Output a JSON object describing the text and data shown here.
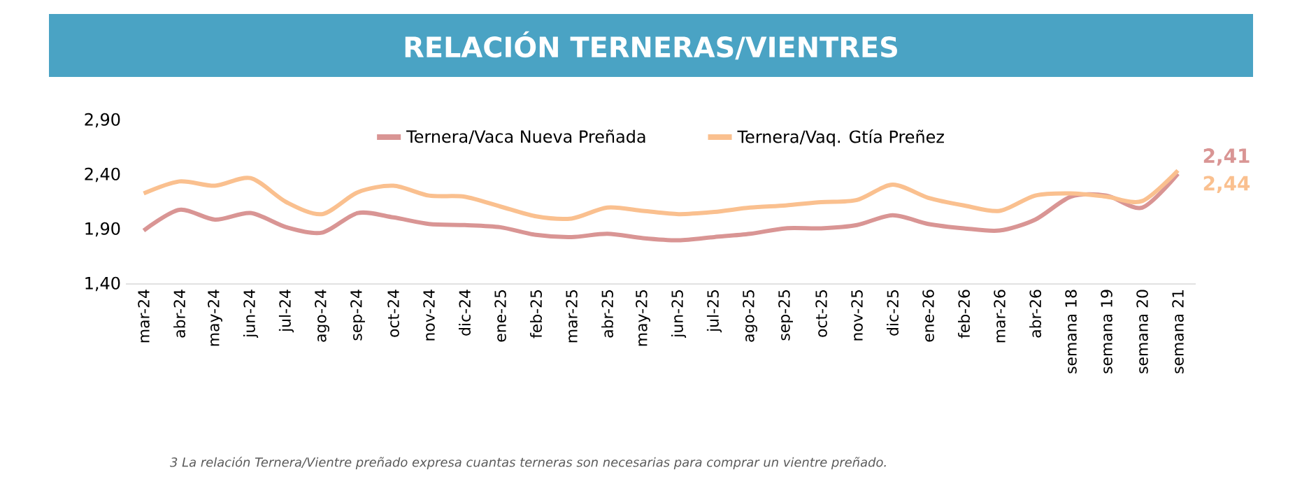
{
  "chart_data": {
    "type": "line",
    "title": "RELACIÓN TERNERAS/VIENTRES",
    "categories": [
      "mar-24",
      "abr-24",
      "may-24",
      "jun-24",
      "jul-24",
      "ago-24",
      "sep-24",
      "oct-24",
      "nov-24",
      "dic-24",
      "ene-25",
      "feb-25",
      "mar-25",
      "abr-25",
      "may-25",
      "jun-25",
      "jul-25",
      "ago-25",
      "sep-25",
      "oct-25",
      "nov-25",
      "dic-25",
      "ene-26",
      "feb-26",
      "mar-26",
      "abr-26",
      "semana 18",
      "semana 19",
      "semana 20",
      "semana 21"
    ],
    "series": [
      {
        "name": "Ternera/Vaca Nueva Preñada",
        "color": "#d99594",
        "values": [
          1.89,
          2.08,
          1.99,
          2.05,
          1.92,
          1.87,
          2.05,
          2.01,
          1.95,
          1.94,
          1.92,
          1.85,
          1.83,
          1.86,
          1.82,
          1.8,
          1.83,
          1.86,
          1.91,
          1.91,
          1.94,
          2.03,
          1.95,
          1.91,
          1.89,
          1.99,
          2.2,
          2.21,
          2.1,
          2.41
        ],
        "value_labels": [
          null,
          null,
          null,
          null,
          null,
          null,
          null,
          null,
          null,
          null,
          null,
          null,
          null,
          null,
          null,
          null,
          null,
          null,
          null,
          null,
          null,
          null,
          null,
          null,
          null,
          null,
          null,
          null,
          null,
          "2,41"
        ]
      },
      {
        "name": "Ternera/Vaq. Gtía Preñez",
        "color": "#fac08f",
        "values": [
          2.23,
          2.34,
          2.3,
          2.37,
          2.15,
          2.04,
          2.24,
          2.3,
          2.21,
          2.2,
          2.11,
          2.02,
          2.0,
          2.1,
          2.07,
          2.04,
          2.06,
          2.1,
          2.12,
          2.15,
          2.17,
          2.31,
          2.19,
          2.12,
          2.07,
          2.21,
          2.23,
          2.2,
          2.16,
          2.44
        ],
        "value_labels": [
          null,
          null,
          null,
          null,
          null,
          null,
          null,
          null,
          null,
          null,
          null,
          null,
          null,
          null,
          null,
          null,
          null,
          null,
          null,
          null,
          null,
          null,
          null,
          null,
          null,
          null,
          null,
          null,
          null,
          "2,44"
        ]
      }
    ],
    "ylim": [
      1.4,
      2.9
    ],
    "yticks": [
      {
        "value": 1.4,
        "label": "1,40"
      },
      {
        "value": 1.9,
        "label": "1,90"
      },
      {
        "value": 2.4,
        "label": "2,40"
      },
      {
        "value": 2.9,
        "label": "2,90"
      }
    ],
    "legend": "top",
    "annotations": [
      "3 La relación Ternera/Vientre preñado expresa cuantas terneras son necesarias para comprar un vientre preñado."
    ]
  }
}
